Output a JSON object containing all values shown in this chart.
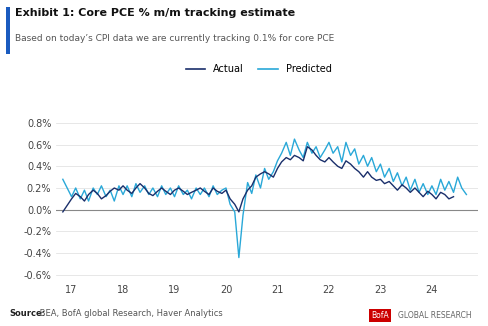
{
  "title": "Exhibit 1: Core PCE % m/m tracking estimate",
  "subtitle": "Based on today’s CPI data we are currently tracking 0.1% for core PCE",
  "source_bold": "Source:",
  "source_rest": " BEA, BofA global Research, Haver Analytics",
  "actual_color": "#1a2f6b",
  "predicted_color": "#29a8d8",
  "background_color": "#ffffff",
  "title_bar_color": "#1a5bbf",
  "ylim": [
    -0.65,
    0.85
  ],
  "yticks": [
    -0.6,
    -0.4,
    -0.2,
    0.0,
    0.2,
    0.4,
    0.6,
    0.8
  ],
  "ytick_labels": [
    "-0.6%",
    "-0.4%",
    "-0.2%",
    "0.0%",
    "0.2%",
    "0.4%",
    "0.6%",
    "0.8%"
  ],
  "xticks": [
    17,
    18,
    19,
    20,
    21,
    22,
    23,
    24
  ],
  "xlim": [
    16.7,
    24.9
  ],
  "actual_x": [
    16.83,
    17.0,
    17.08,
    17.17,
    17.25,
    17.33,
    17.42,
    17.5,
    17.58,
    17.67,
    17.75,
    17.83,
    17.92,
    18.0,
    18.08,
    18.17,
    18.25,
    18.33,
    18.42,
    18.5,
    18.58,
    18.67,
    18.75,
    18.83,
    18.92,
    19.0,
    19.08,
    19.17,
    19.25,
    19.33,
    19.42,
    19.5,
    19.58,
    19.67,
    19.75,
    19.83,
    19.92,
    20.0,
    20.08,
    20.17,
    20.25,
    20.33,
    20.42,
    20.5,
    20.58,
    20.67,
    20.75,
    20.83,
    20.92,
    21.0,
    21.08,
    21.17,
    21.25,
    21.33,
    21.42,
    21.5,
    21.58,
    21.67,
    21.75,
    21.83,
    21.92,
    22.0,
    22.08,
    22.17,
    22.25,
    22.33,
    22.42,
    22.5,
    22.58,
    22.67,
    22.75,
    22.83,
    22.92,
    23.0,
    23.08,
    23.17,
    23.25,
    23.33,
    23.42,
    23.5,
    23.58,
    23.67,
    23.75,
    23.83,
    23.92,
    24.0,
    24.08,
    24.17,
    24.25,
    24.33,
    24.42
  ],
  "actual_y": [
    -0.02,
    0.1,
    0.15,
    0.12,
    0.08,
    0.14,
    0.18,
    0.15,
    0.1,
    0.13,
    0.17,
    0.2,
    0.18,
    0.22,
    0.18,
    0.15,
    0.2,
    0.24,
    0.2,
    0.15,
    0.13,
    0.17,
    0.2,
    0.17,
    0.14,
    0.18,
    0.2,
    0.17,
    0.14,
    0.16,
    0.18,
    0.2,
    0.17,
    0.14,
    0.2,
    0.17,
    0.15,
    0.18,
    0.1,
    0.05,
    -0.02,
    0.1,
    0.18,
    0.22,
    0.3,
    0.33,
    0.35,
    0.33,
    0.3,
    0.38,
    0.44,
    0.48,
    0.46,
    0.5,
    0.48,
    0.45,
    0.58,
    0.55,
    0.5,
    0.46,
    0.44,
    0.48,
    0.44,
    0.4,
    0.38,
    0.45,
    0.42,
    0.38,
    0.35,
    0.3,
    0.35,
    0.3,
    0.27,
    0.28,
    0.24,
    0.26,
    0.22,
    0.18,
    0.23,
    0.2,
    0.16,
    0.2,
    0.16,
    0.12,
    0.17,
    0.14,
    0.1,
    0.16,
    0.14,
    0.1,
    0.12
  ],
  "predicted_x": [
    16.83,
    17.0,
    17.08,
    17.17,
    17.25,
    17.33,
    17.42,
    17.5,
    17.58,
    17.67,
    17.75,
    17.83,
    17.92,
    18.0,
    18.08,
    18.17,
    18.25,
    18.33,
    18.42,
    18.5,
    18.58,
    18.67,
    18.75,
    18.83,
    18.92,
    19.0,
    19.08,
    19.17,
    19.25,
    19.33,
    19.42,
    19.5,
    19.58,
    19.67,
    19.75,
    19.83,
    19.92,
    20.0,
    20.08,
    20.17,
    20.25,
    20.33,
    20.42,
    20.5,
    20.58,
    20.67,
    20.75,
    20.83,
    20.92,
    21.0,
    21.08,
    21.17,
    21.25,
    21.33,
    21.42,
    21.5,
    21.58,
    21.67,
    21.75,
    21.83,
    21.92,
    22.0,
    22.08,
    22.17,
    22.25,
    22.33,
    22.42,
    22.5,
    22.58,
    22.67,
    22.75,
    22.83,
    22.92,
    23.0,
    23.08,
    23.17,
    23.25,
    23.33,
    23.42,
    23.5,
    23.58,
    23.67,
    23.75,
    23.83,
    23.92,
    24.0,
    24.08,
    24.17,
    24.25,
    24.33,
    24.42,
    24.5,
    24.58,
    24.67
  ],
  "predicted_y": [
    0.28,
    0.12,
    0.2,
    0.1,
    0.18,
    0.08,
    0.2,
    0.14,
    0.22,
    0.12,
    0.18,
    0.08,
    0.22,
    0.14,
    0.22,
    0.12,
    0.24,
    0.16,
    0.22,
    0.14,
    0.2,
    0.12,
    0.22,
    0.14,
    0.2,
    0.12,
    0.22,
    0.14,
    0.18,
    0.1,
    0.2,
    0.14,
    0.2,
    0.12,
    0.22,
    0.14,
    0.18,
    0.2,
    0.05,
    -0.02,
    -0.44,
    -0.05,
    0.25,
    0.15,
    0.32,
    0.2,
    0.38,
    0.28,
    0.35,
    0.45,
    0.52,
    0.62,
    0.5,
    0.65,
    0.55,
    0.48,
    0.62,
    0.52,
    0.58,
    0.48,
    0.55,
    0.62,
    0.52,
    0.58,
    0.44,
    0.62,
    0.5,
    0.56,
    0.42,
    0.5,
    0.4,
    0.48,
    0.35,
    0.42,
    0.3,
    0.38,
    0.26,
    0.34,
    0.22,
    0.3,
    0.18,
    0.28,
    0.16,
    0.24,
    0.14,
    0.22,
    0.14,
    0.28,
    0.18,
    0.26,
    0.16,
    0.3,
    0.2,
    0.14
  ]
}
